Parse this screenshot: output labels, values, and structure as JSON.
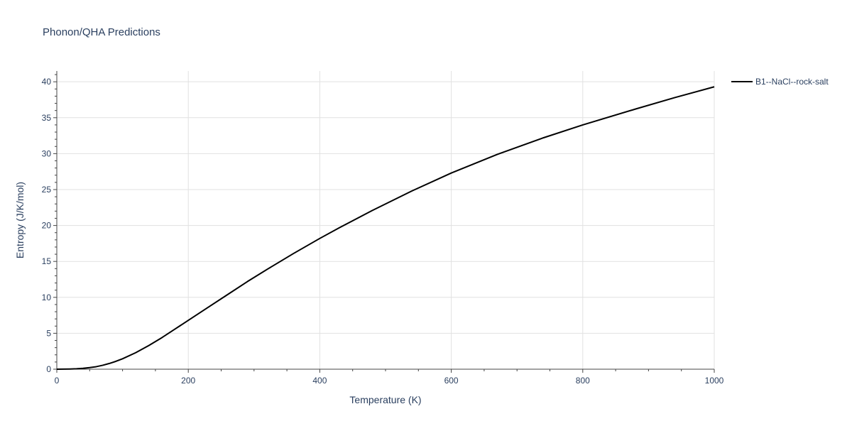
{
  "chart_data": {
    "type": "line",
    "title": "Phonon/QHA Predictions",
    "xlabel": "Temperature (K)",
    "ylabel": "Entropy (J/K/mol)",
    "xlim": [
      0,
      1000
    ],
    "ylim": [
      0,
      41.5
    ],
    "xticks": [
      0,
      200,
      400,
      600,
      800,
      1000
    ],
    "yticks": [
      0,
      5,
      10,
      15,
      20,
      25,
      30,
      35,
      40
    ],
    "grid": true,
    "legend_position": "top-right",
    "series": [
      {
        "name": "B1--NaCl--rock-salt",
        "color": "#000000",
        "x": [
          0,
          10,
          20,
          30,
          40,
          50,
          60,
          70,
          80,
          90,
          100,
          120,
          140,
          160,
          180,
          200,
          230,
          260,
          290,
          320,
          360,
          400,
          430,
          480,
          540,
          600,
          670,
          740,
          800,
          880,
          940,
          1000
        ],
        "y": [
          0,
          0.01,
          0.03,
          0.06,
          0.12,
          0.22,
          0.35,
          0.55,
          0.8,
          1.1,
          1.45,
          2.3,
          3.3,
          4.4,
          5.6,
          6.8,
          8.6,
          10.4,
          12.2,
          13.9,
          16.1,
          18.2,
          19.7,
          22.1,
          24.8,
          27.3,
          29.9,
          32.2,
          34.0,
          36.2,
          37.8,
          39.3
        ]
      }
    ]
  }
}
